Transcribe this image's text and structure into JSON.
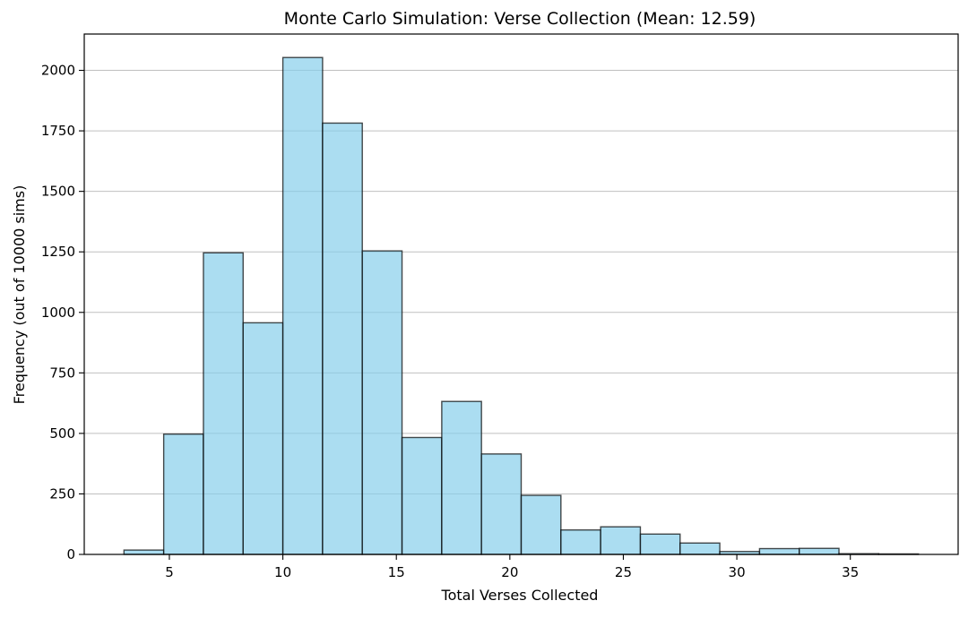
{
  "chart_data": {
    "type": "bar",
    "subtype": "histogram",
    "title": "Monte Carlo Simulation: Verse Collection (Mean: 12.59)",
    "xlabel": "Total Verses Collected",
    "ylabel": "Frequency (out of 10000 sims)",
    "xlim": [
      1.25,
      39.75
    ],
    "ylim": [
      0,
      2150
    ],
    "xticks": [
      5,
      10,
      15,
      20,
      25,
      30,
      35
    ],
    "yticks": [
      0,
      250,
      500,
      750,
      1000,
      1250,
      1500,
      1750,
      2000
    ],
    "grid": "y-axis only",
    "bin_edges": [
      3,
      4.75,
      6.5,
      8.25,
      10,
      11.75,
      13.5,
      15.25,
      17,
      18.75,
      20.5,
      22.25,
      24,
      25.75,
      27.5,
      29.25,
      31,
      32.75,
      34.5,
      36.25,
      38
    ],
    "values": [
      18,
      497,
      1246,
      957,
      2053,
      1782,
      1254,
      483,
      632,
      415,
      244,
      101,
      114,
      84,
      47,
      12,
      24,
      25,
      3,
      2
    ],
    "colors": {
      "bar_fill": "#87CEEB",
      "bar_edge": "#000000",
      "grid": "#b0b0b0"
    }
  }
}
